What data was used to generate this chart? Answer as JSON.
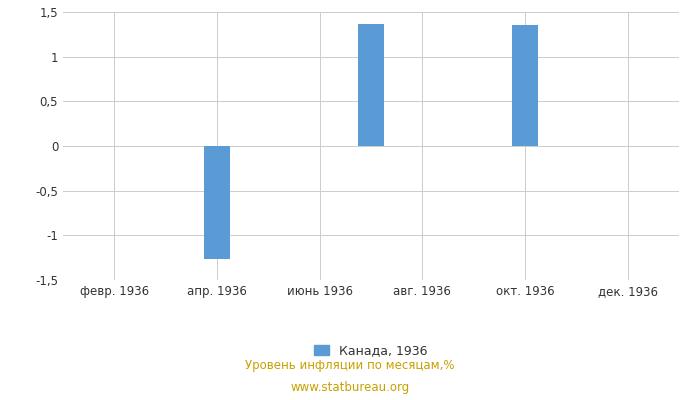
{
  "months_count": 12,
  "bar_positions": [
    3,
    6,
    9
  ],
  "bar_values": [
    -1.27,
    1.37,
    1.36
  ],
  "bar_color": "#5b9bd5",
  "xtick_positions": [
    1,
    3,
    5,
    7,
    9,
    11
  ],
  "xtick_labels": [
    "февр. 1936",
    "апр. 1936",
    "июнь 1936",
    "авг. 1936",
    "окт. 1936",
    "дек. 1936"
  ],
  "ylim": [
    -1.5,
    1.5
  ],
  "yticks": [
    -1.5,
    -1.0,
    -0.5,
    0.0,
    0.5,
    1.0,
    1.5
  ],
  "legend_label": "Канада, 1936",
  "footer_line1": "Уровень инфляции по месяцам,%",
  "footer_line2": "www.statbureau.org",
  "background_color": "#ffffff",
  "grid_color": "#cccccc",
  "footer_color": "#c8a000",
  "bar_width": 0.5
}
